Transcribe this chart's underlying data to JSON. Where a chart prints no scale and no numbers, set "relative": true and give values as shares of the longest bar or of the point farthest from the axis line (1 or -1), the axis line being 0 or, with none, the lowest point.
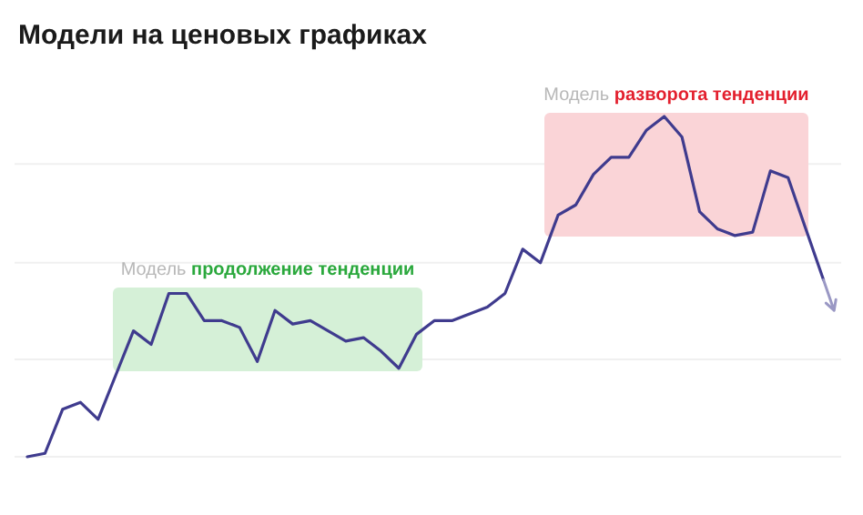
{
  "chart_data": {
    "type": "line",
    "title": "Модели на ценовых графиках",
    "relative": true,
    "grid": "y",
    "marker": "none",
    "line_style": "solid",
    "categories": [
      null,
      null,
      null,
      null,
      null,
      null,
      null,
      null,
      null,
      null,
      null,
      null,
      null,
      null,
      null,
      null,
      null,
      null,
      null,
      null,
      null,
      null,
      null,
      null,
      null,
      null,
      null,
      null,
      null,
      null,
      null,
      null,
      null,
      null,
      null,
      null,
      null,
      null,
      null,
      null,
      null,
      null,
      null,
      null,
      null,
      null
    ],
    "series": [
      {
        "color": "#3f3b8e",
        "values": [
          0,
          0.01,
          0.14,
          0.16,
          0.11,
          0.24,
          0.37,
          0.33,
          0.48,
          0.48,
          0.4,
          0.4,
          0.38,
          0.28,
          0.43,
          0.39,
          0.4,
          0.37,
          0.34,
          0.35,
          0.31,
          0.26,
          0.36,
          0.4,
          0.4,
          0.42,
          0.44,
          0.48,
          0.61,
          0.57,
          0.71,
          0.74,
          0.83,
          0.88,
          0.88,
          0.96,
          1,
          0.94,
          0.72,
          0.67,
          0.65,
          0.66,
          0.84,
          0.82,
          0.67,
          0.52
        ]
      }
    ],
    "annotations": [
      "Модель продолжение тенденции",
      "Модель разворота тенденции"
    ]
  }
}
